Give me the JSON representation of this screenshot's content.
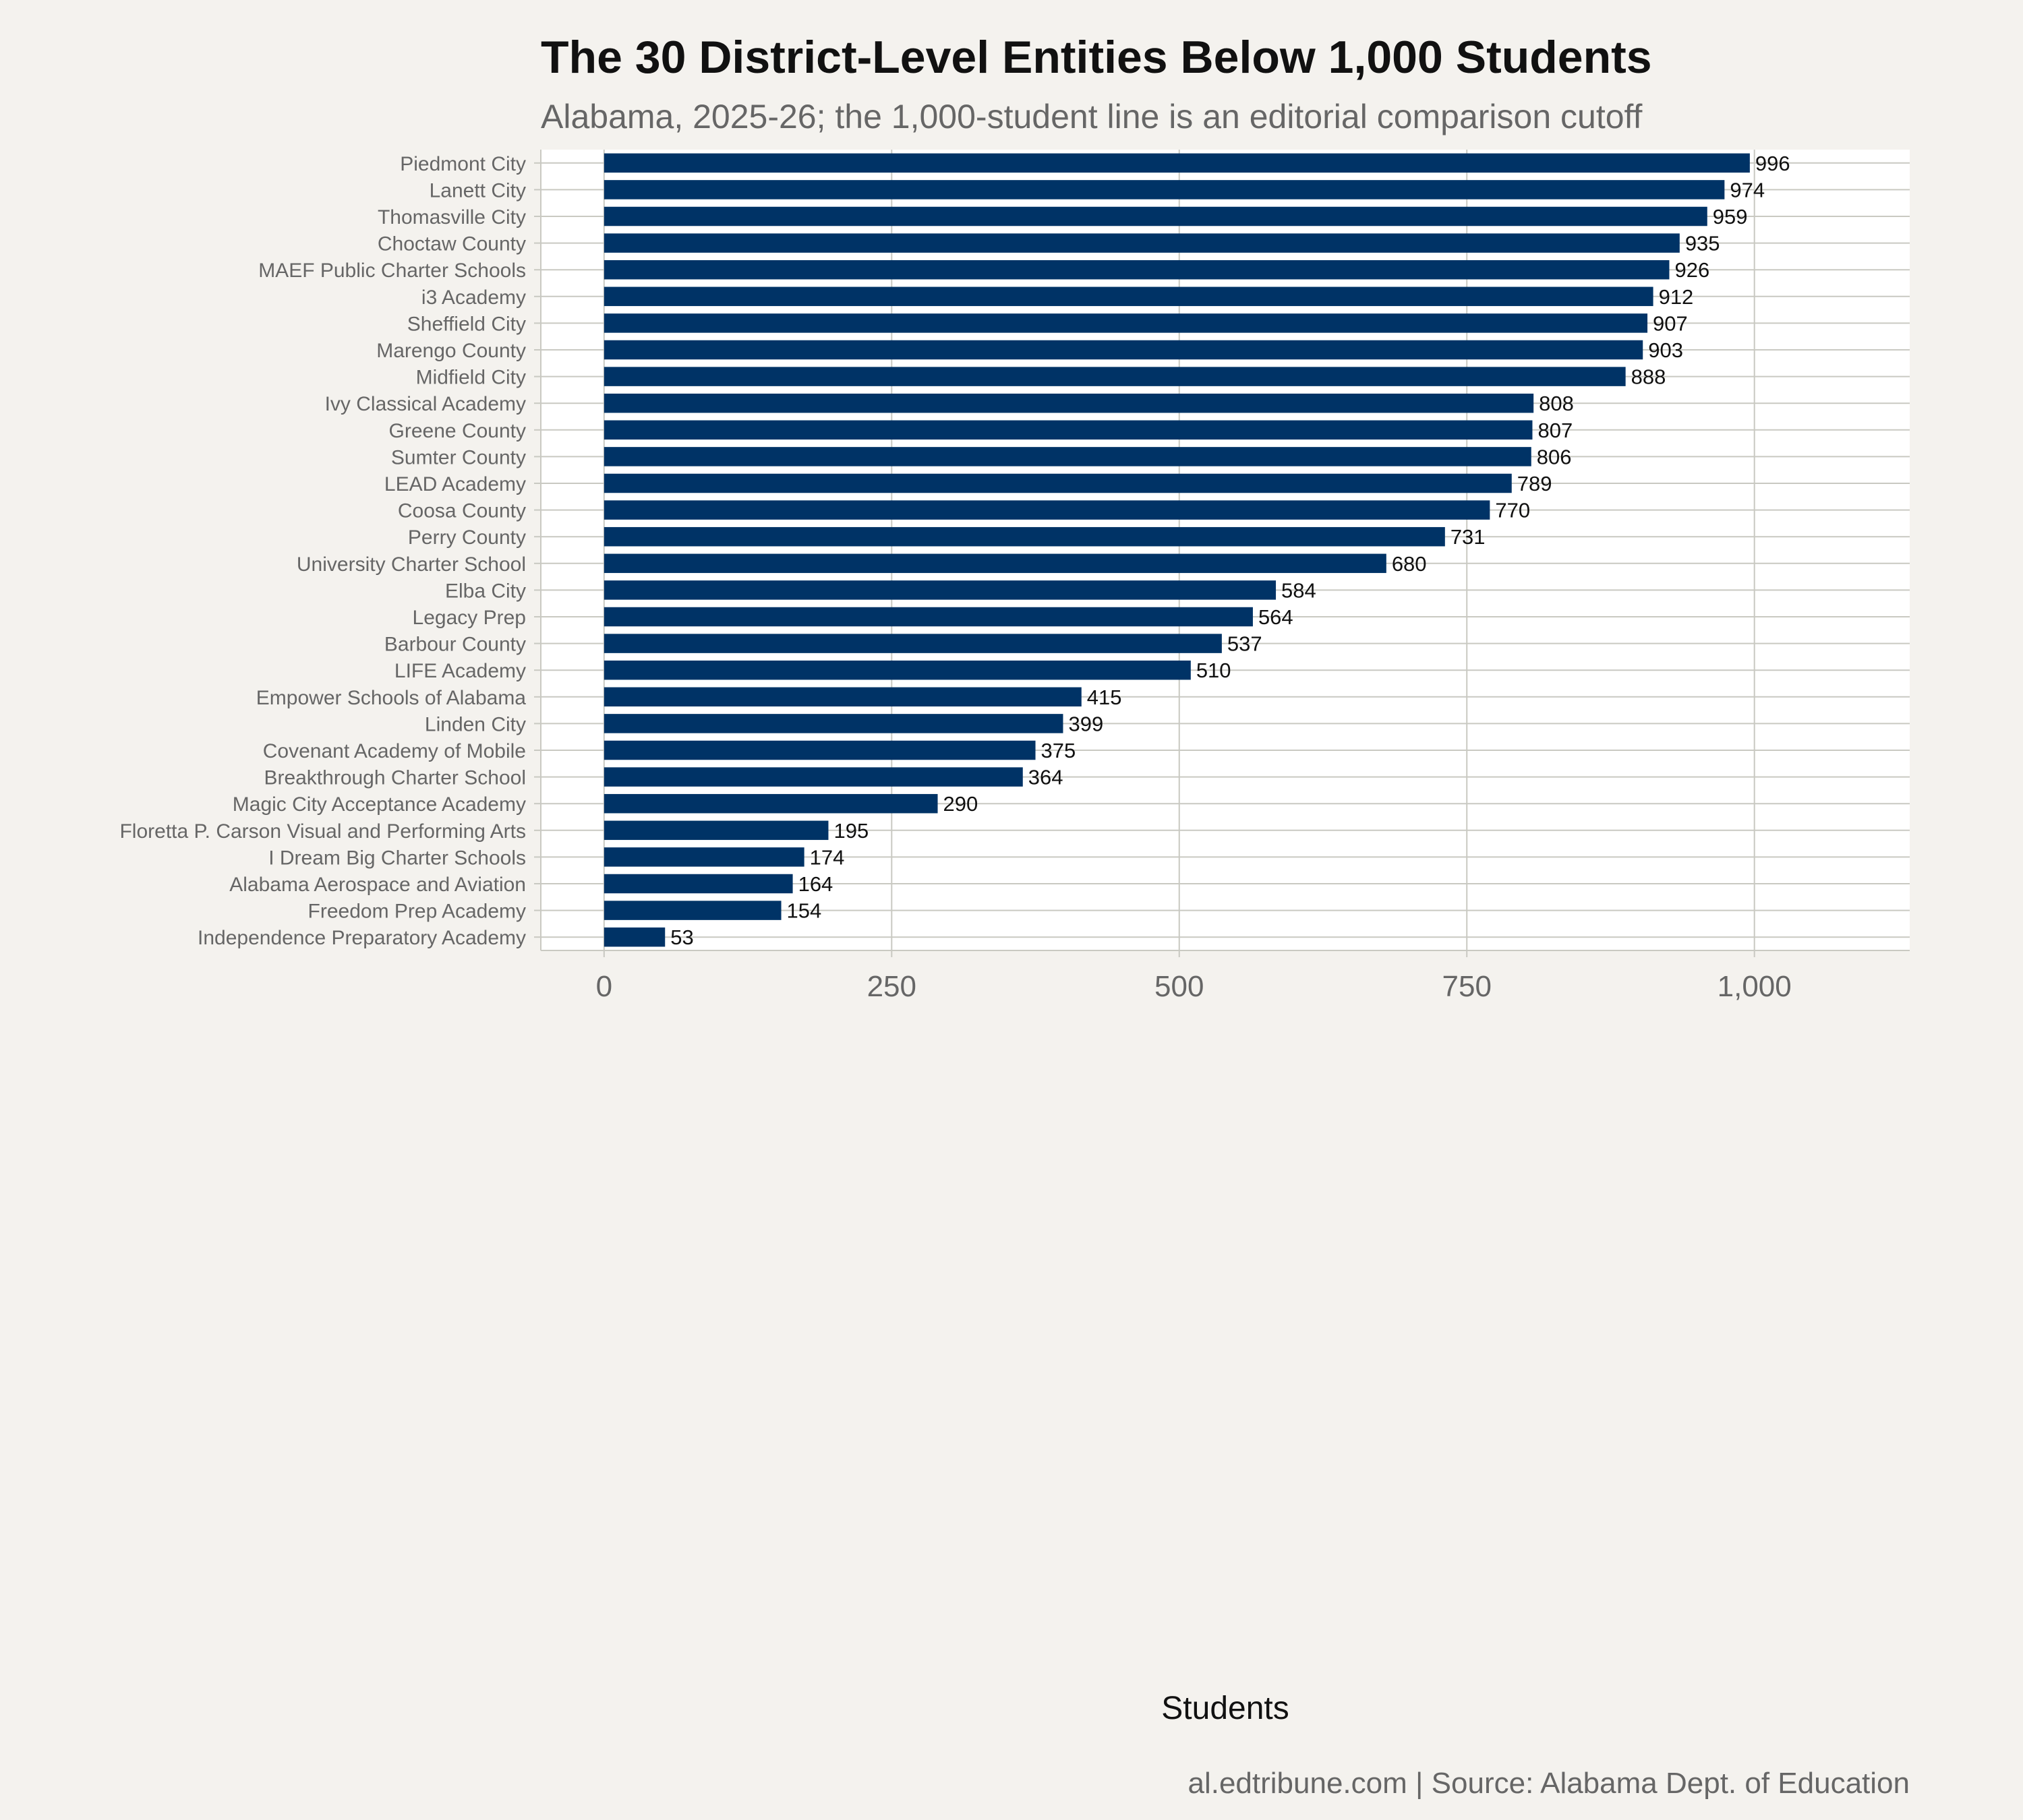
{
  "title": "The 30 District-Level Entities Below 1,000 Students",
  "subtitle": "Alabama, 2025-26; the 1,000-student line is an editorial comparison cutoff",
  "caption": "al.edtribune.com | Source: Alabama Dept. of Education",
  "colors": {
    "background": "#f4f2ee",
    "panel": "#ffffff",
    "bar": "#003366",
    "grid": "#c9c9c2",
    "title": "#111111",
    "subtitle": "#666666",
    "axis_text": "#666666"
  },
  "chart_data": {
    "type": "bar",
    "orientation": "horizontal",
    "xlabel": "Students",
    "ylabel": "",
    "xlim": [
      -55,
      1135
    ],
    "x_ticks": [
      0,
      250,
      500,
      750,
      1000
    ],
    "x_tick_labels": [
      "0",
      "250",
      "500",
      "750",
      "1,000"
    ],
    "grid": true,
    "data_labels": true,
    "categories": [
      "Piedmont City",
      "Lanett City",
      "Thomasville City",
      "Choctaw County",
      "MAEF Public Charter Schools",
      "i3 Academy",
      "Sheffield City",
      "Marengo County",
      "Midfield City",
      "Ivy Classical Academy",
      "Greene County",
      "Sumter County",
      "LEAD Academy",
      "Coosa County",
      "Perry County",
      "University Charter School",
      "Elba City",
      "Legacy Prep",
      "Barbour County",
      "LIFE Academy",
      "Empower Schools of Alabama",
      "Linden City",
      "Covenant Academy of Mobile",
      "Breakthrough Charter School",
      "Magic City Acceptance Academy",
      "Floretta P. Carson Visual and Performing Arts",
      "I Dream Big Charter Schools",
      "Alabama Aerospace and Aviation",
      "Freedom Prep Academy",
      "Independence Preparatory Academy"
    ],
    "values": [
      996,
      974,
      959,
      935,
      926,
      912,
      907,
      903,
      888,
      808,
      807,
      806,
      789,
      770,
      731,
      680,
      584,
      564,
      537,
      510,
      415,
      399,
      375,
      364,
      290,
      195,
      174,
      164,
      154,
      53
    ]
  }
}
